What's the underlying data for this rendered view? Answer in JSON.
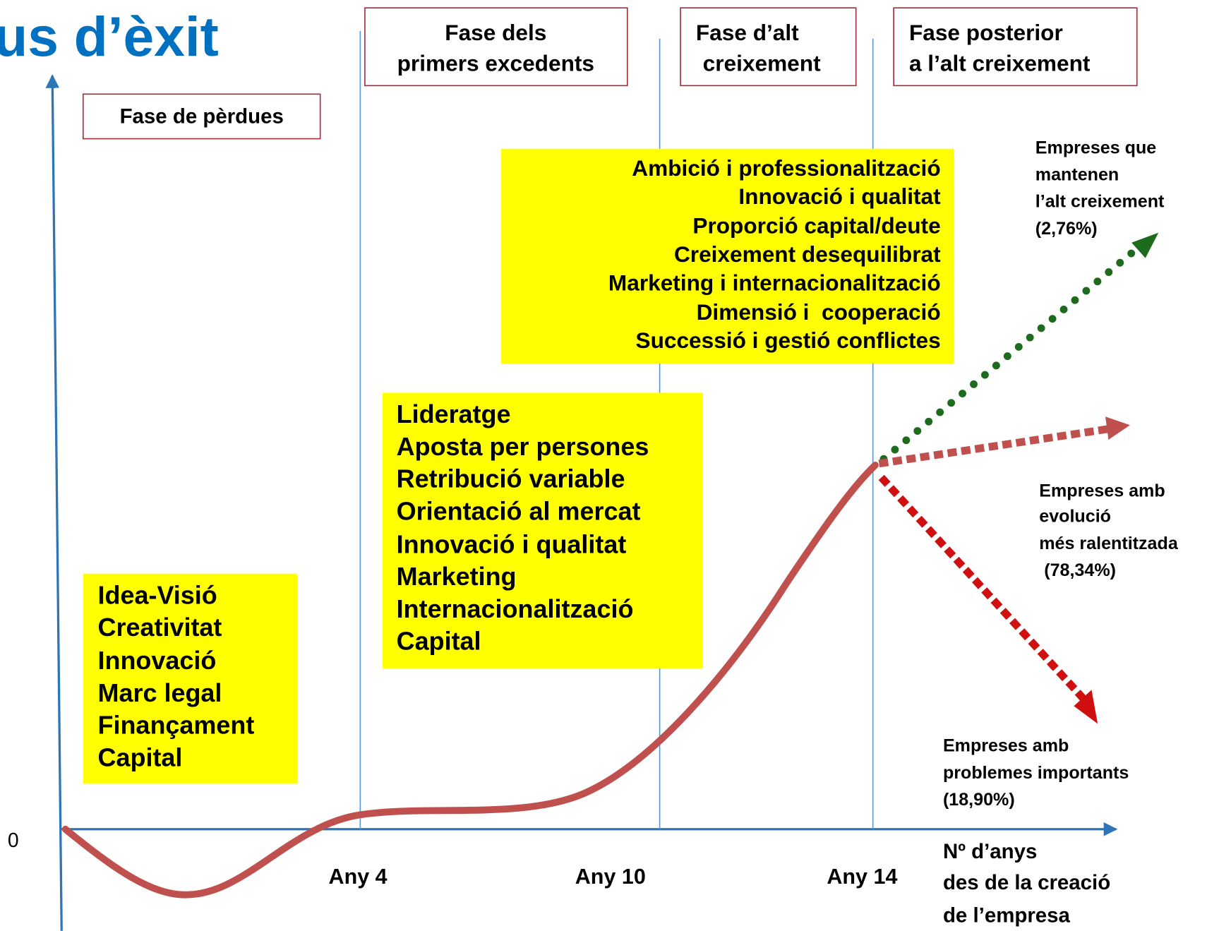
{
  "title": "us d’èxit",
  "phases": [
    {
      "lines": [
        "Fase de pèrdues"
      ]
    },
    {
      "lines": [
        "Fase dels",
        "primers excedents"
      ]
    },
    {
      "lines": [
        "Fase d’alt",
        "creixement"
      ]
    },
    {
      "lines": [
        "Fase posterior",
        "a l’alt creixement"
      ]
    }
  ],
  "factors": [
    {
      "lines": [
        "Idea-Visió",
        "Creativitat",
        "Innovació",
        "Marc legal",
        "Finançament",
        "Capital"
      ]
    },
    {
      "lines": [
        "Lideratge",
        "Aposta per persones",
        "Retribució variable",
        "Orientació al mercat",
        "Innovació i qualitat",
        "Marketing",
        "Internacionalització",
        "Capital"
      ]
    },
    {
      "lines": [
        "Ambició i professionalització",
        "Innovació i qualitat",
        "Proporció capital/deute",
        "Creixement desequilibrat",
        "Marketing i internacionalització",
        "Dimensió i  cooperació",
        "Successió i gestió conflictes"
      ]
    }
  ],
  "outcomes": [
    {
      "lines": [
        "Empreses que",
        "mantenen",
        "l’alt creixement",
        "(2,76%)"
      ]
    },
    {
      "lines": [
        "Empreses amb",
        "evolució",
        "més ralentitzada",
        " (78,34%)"
      ]
    },
    {
      "lines": [
        "Empreses amb",
        "problemes importants",
        "(18,90%)"
      ]
    }
  ],
  "axis": {
    "origin": "0",
    "ticks": [
      "Any 4",
      "Any 10",
      "Any 14"
    ],
    "x_label": [
      "Nº d’anys",
      "des de la creació",
      "de l’empresa"
    ]
  }
}
